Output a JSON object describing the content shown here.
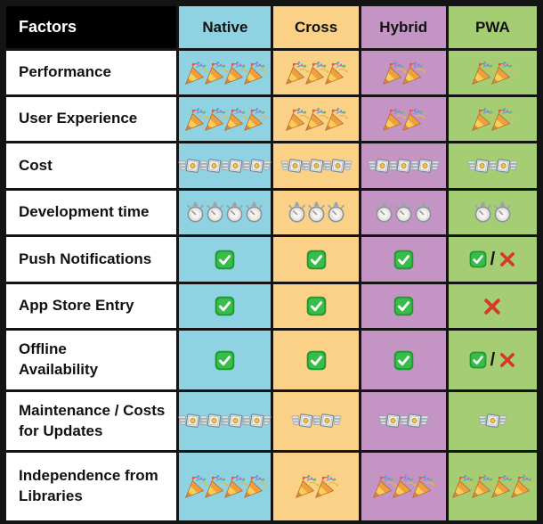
{
  "table": {
    "header": {
      "factors_label": "Factors",
      "columns": [
        {
          "label": "Native",
          "color": "#8FD3E3"
        },
        {
          "label": "Cross",
          "color": "#FBD188"
        },
        {
          "label": "Hybrid",
          "color": "#C494C5"
        },
        {
          "label": "PWA",
          "color": "#A5CD73"
        }
      ]
    },
    "rows": [
      {
        "factor": "Performance",
        "cells": [
          {
            "icon": "party-popper",
            "count": 4
          },
          {
            "icon": "party-popper",
            "count": 3
          },
          {
            "icon": "party-popper",
            "count": 2
          },
          {
            "icon": "party-popper",
            "count": 2
          }
        ]
      },
      {
        "factor": "User Experience",
        "cells": [
          {
            "icon": "party-popper",
            "count": 4
          },
          {
            "icon": "party-popper",
            "count": 3
          },
          {
            "icon": "party-popper",
            "count": 2
          },
          {
            "icon": "party-popper",
            "count": 2
          }
        ]
      },
      {
        "factor": "Cost",
        "cells": [
          {
            "icon": "money-with-wings",
            "count": 4
          },
          {
            "icon": "money-with-wings",
            "count": 3
          },
          {
            "icon": "money-with-wings",
            "count": 3
          },
          {
            "icon": "money-with-wings",
            "count": 2
          }
        ]
      },
      {
        "factor": "Development time",
        "cells": [
          {
            "icon": "stopwatch",
            "count": 4
          },
          {
            "icon": "stopwatch",
            "count": 3
          },
          {
            "icon": "stopwatch",
            "count": 3
          },
          {
            "icon": "stopwatch",
            "count": 2
          }
        ]
      },
      {
        "factor": "Push Notifications",
        "cells": [
          {
            "icon": "check-mark",
            "count": 1
          },
          {
            "icon": "check-mark",
            "count": 1
          },
          {
            "icon": "check-mark",
            "count": 1
          },
          {
            "icon": "check-or-cross",
            "count": 1,
            "separator": "/"
          }
        ]
      },
      {
        "factor": "App Store Entry",
        "cells": [
          {
            "icon": "check-mark",
            "count": 1
          },
          {
            "icon": "check-mark",
            "count": 1
          },
          {
            "icon": "check-mark",
            "count": 1
          },
          {
            "icon": "cross-mark",
            "count": 1
          }
        ]
      },
      {
        "factor": "Offline\nAvailability",
        "cells": [
          {
            "icon": "check-mark",
            "count": 1
          },
          {
            "icon": "check-mark",
            "count": 1
          },
          {
            "icon": "check-mark",
            "count": 1
          },
          {
            "icon": "check-or-cross",
            "count": 1,
            "separator": "/"
          }
        ]
      },
      {
        "factor": "Maintenance / Costs\nfor Updates",
        "cells": [
          {
            "icon": "money-with-wings",
            "count": 4
          },
          {
            "icon": "money-with-wings",
            "count": 2
          },
          {
            "icon": "money-with-wings",
            "count": 2
          },
          {
            "icon": "money-with-wings",
            "count": 1
          }
        ]
      },
      {
        "factor": "Independence from\nLibraries",
        "cells": [
          {
            "icon": "party-popper",
            "count": 4
          },
          {
            "icon": "party-popper",
            "count": 2
          },
          {
            "icon": "party-popper",
            "count": 3
          },
          {
            "icon": "party-popper",
            "count": 4
          }
        ]
      }
    ]
  },
  "colors": {
    "header_bg": "#000000",
    "header_text": "#ffffff",
    "border": "#141414",
    "factor_bg": "#ffffff",
    "check_green": "#2BA63B",
    "cross_red": "#D6382B"
  },
  "chart_data": {
    "type": "table",
    "title": "App development approach comparison",
    "columns": [
      "Factors",
      "Native",
      "Cross",
      "Hybrid",
      "PWA"
    ],
    "rows": [
      {
        "factor": "Performance",
        "unit": "party-popper rating",
        "values": [
          4,
          3,
          2,
          2
        ]
      },
      {
        "factor": "User Experience",
        "unit": "party-popper rating",
        "values": [
          4,
          3,
          2,
          2
        ]
      },
      {
        "factor": "Cost",
        "unit": "money-with-wings rating",
        "values": [
          4,
          3,
          3,
          2
        ]
      },
      {
        "factor": "Development time",
        "unit": "stopwatch rating",
        "values": [
          4,
          3,
          3,
          2
        ]
      },
      {
        "factor": "Push Notifications",
        "unit": "yes/no",
        "values": [
          "yes",
          "yes",
          "yes",
          "yes/no"
        ]
      },
      {
        "factor": "App Store Entry",
        "unit": "yes/no",
        "values": [
          "yes",
          "yes",
          "yes",
          "no"
        ]
      },
      {
        "factor": "Offline Availability",
        "unit": "yes/no",
        "values": [
          "yes",
          "yes",
          "yes",
          "yes/no"
        ]
      },
      {
        "factor": "Maintenance / Costs for Updates",
        "unit": "money-with-wings rating",
        "values": [
          4,
          2,
          2,
          1
        ]
      },
      {
        "factor": "Independence from Libraries",
        "unit": "party-popper rating",
        "values": [
          4,
          2,
          3,
          4
        ]
      }
    ]
  }
}
